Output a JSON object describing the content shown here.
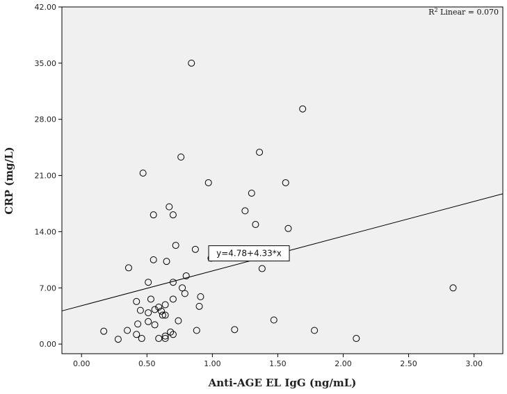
{
  "chart_data": {
    "type": "scatter",
    "title": "",
    "xlabel": "Anti-AGE EL IgG (ng/mL)",
    "ylabel": "CRP (mg/L)",
    "xlim": [
      -0.15,
      3.22
    ],
    "ylim": [
      -1.2,
      42.0
    ],
    "xticks": [
      0.0,
      0.5,
      1.0,
      1.5,
      2.0,
      2.5,
      3.0
    ],
    "xtick_labels": [
      "0.00",
      "0.50",
      "1.00",
      "1.50",
      "2.00",
      "2.50",
      "3.00"
    ],
    "yticks": [
      0.0,
      7.0,
      14.0,
      21.0,
      28.0,
      35.0,
      42.0
    ],
    "ytick_labels": [
      "0.00",
      "7.00",
      "14.00",
      "21.00",
      "28.00",
      "35.00",
      "42.00"
    ],
    "grid": false,
    "r2_label": {
      "prefix": "R",
      "sup": "2",
      "text": " Linear = 0.070"
    },
    "fit_line": {
      "intercept": 4.78,
      "slope": 4.33,
      "label": "y=4.78+4.33*x",
      "label_at": {
        "x": 1.28,
        "y": 11.3
      }
    },
    "points": [
      {
        "x": 0.84,
        "y": 35.0
      },
      {
        "x": 1.69,
        "y": 29.3
      },
      {
        "x": 1.36,
        "y": 23.9
      },
      {
        "x": 0.76,
        "y": 23.3
      },
      {
        "x": 0.47,
        "y": 21.3
      },
      {
        "x": 0.97,
        "y": 20.1
      },
      {
        "x": 1.56,
        "y": 20.1
      },
      {
        "x": 1.3,
        "y": 18.8
      },
      {
        "x": 0.67,
        "y": 17.1
      },
      {
        "x": 1.25,
        "y": 16.6
      },
      {
        "x": 0.55,
        "y": 16.1
      },
      {
        "x": 0.7,
        "y": 16.1
      },
      {
        "x": 1.33,
        "y": 14.9
      },
      {
        "x": 1.58,
        "y": 14.4
      },
      {
        "x": 0.72,
        "y": 12.3
      },
      {
        "x": 0.87,
        "y": 11.8
      },
      {
        "x": 0.55,
        "y": 10.5
      },
      {
        "x": 0.65,
        "y": 10.3
      },
      {
        "x": 0.99,
        "y": 10.7
      },
      {
        "x": 0.36,
        "y": 9.5
      },
      {
        "x": 1.38,
        "y": 9.4
      },
      {
        "x": 0.8,
        "y": 8.5
      },
      {
        "x": 0.51,
        "y": 7.7
      },
      {
        "x": 0.7,
        "y": 7.7
      },
      {
        "x": 0.77,
        "y": 7.0
      },
      {
        "x": 2.84,
        "y": 7.0
      },
      {
        "x": 0.79,
        "y": 6.3
      },
      {
        "x": 0.91,
        "y": 5.9
      },
      {
        "x": 0.53,
        "y": 5.6
      },
      {
        "x": 0.7,
        "y": 5.6
      },
      {
        "x": 0.42,
        "y": 5.3
      },
      {
        "x": 0.64,
        "y": 4.9
      },
      {
        "x": 0.9,
        "y": 4.7
      },
      {
        "x": 0.59,
        "y": 4.6
      },
      {
        "x": 0.45,
        "y": 4.2
      },
      {
        "x": 0.56,
        "y": 4.3
      },
      {
        "x": 0.61,
        "y": 4.1
      },
      {
        "x": 0.51,
        "y": 3.9
      },
      {
        "x": 0.62,
        "y": 3.6
      },
      {
        "x": 0.64,
        "y": 3.6
      },
      {
        "x": 0.51,
        "y": 2.8
      },
      {
        "x": 0.74,
        "y": 2.9
      },
      {
        "x": 1.47,
        "y": 3.0
      },
      {
        "x": 0.43,
        "y": 2.5
      },
      {
        "x": 0.56,
        "y": 2.4
      },
      {
        "x": 0.17,
        "y": 1.6
      },
      {
        "x": 0.35,
        "y": 1.7
      },
      {
        "x": 0.88,
        "y": 1.7
      },
      {
        "x": 1.17,
        "y": 1.8
      },
      {
        "x": 1.78,
        "y": 1.7
      },
      {
        "x": 0.68,
        "y": 1.5
      },
      {
        "x": 0.42,
        "y": 1.2
      },
      {
        "x": 0.7,
        "y": 1.2
      },
      {
        "x": 0.64,
        "y": 1.0
      },
      {
        "x": 0.28,
        "y": 0.6
      },
      {
        "x": 0.46,
        "y": 0.7
      },
      {
        "x": 0.59,
        "y": 0.7
      },
      {
        "x": 0.64,
        "y": 0.7
      },
      {
        "x": 2.1,
        "y": 0.7
      }
    ]
  }
}
